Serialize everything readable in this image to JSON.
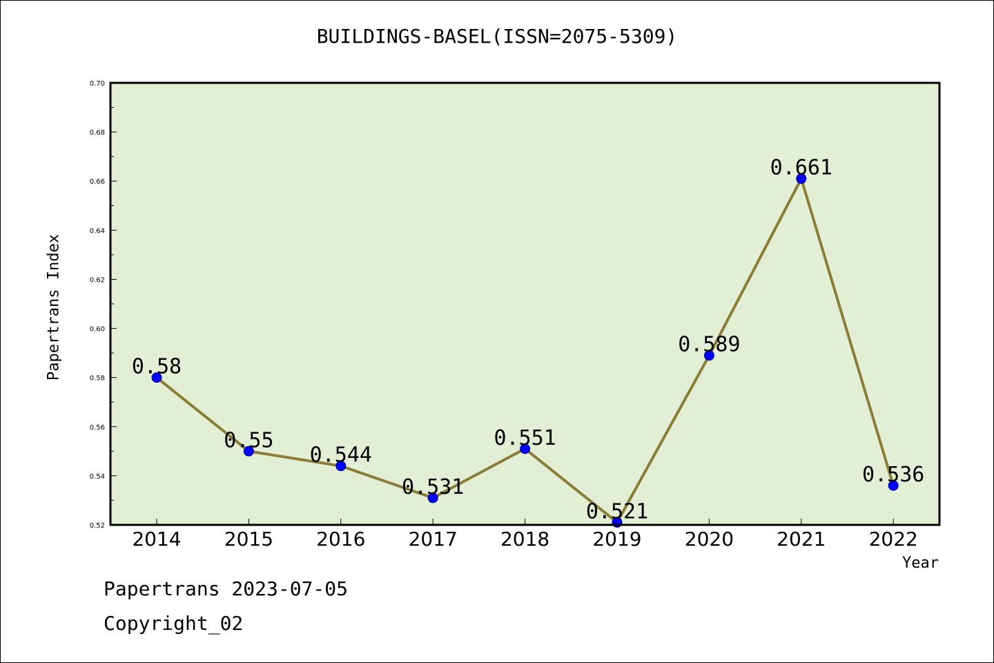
{
  "chart_data": {
    "type": "line",
    "title": "BUILDINGS-BASEL(ISSN=2075-5309)",
    "xlabel": "Year",
    "ylabel": "Papertrans Index",
    "categories": [
      "2014",
      "2015",
      "2016",
      "2017",
      "2018",
      "2019",
      "2020",
      "2021",
      "2022"
    ],
    "values": [
      0.58,
      0.55,
      0.544,
      0.531,
      0.551,
      0.521,
      0.589,
      0.661,
      0.536
    ],
    "data_labels": [
      "0.58",
      "0.55",
      "0.544",
      "0.531",
      "0.551",
      "0.521",
      "0.589",
      "0.661",
      "0.536"
    ],
    "ylim": [
      0.52,
      0.7
    ],
    "yticks": [
      "0.52",
      "0.54",
      "0.56",
      "0.58",
      "0.60",
      "0.62",
      "0.64",
      "0.66",
      "0.68",
      "0.70"
    ],
    "grid": false,
    "colors": {
      "plot_background": "#e2efd4",
      "line": "#8b7d38",
      "marker": "#0000ff"
    }
  },
  "footer": {
    "line1": "Papertrans 2023-07-05",
    "line2": "Copyright_02"
  }
}
